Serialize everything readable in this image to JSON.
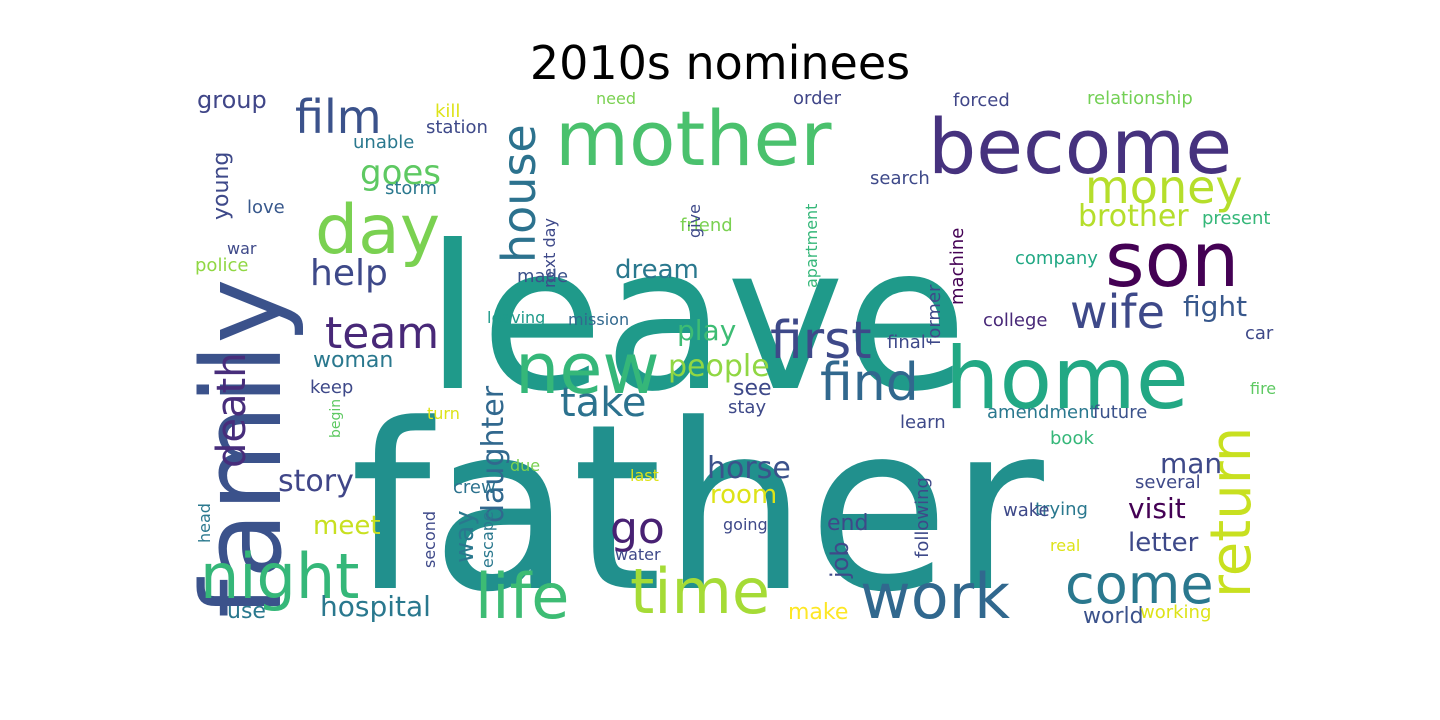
{
  "chart_data": {
    "type": "wordcloud",
    "title": "2010s nominees",
    "words": [
      {
        "text": "father",
        "weight": 1.0,
        "color": "#21908d",
        "rotated": false
      },
      {
        "text": "leave",
        "weight": 0.96,
        "color": "#1f9a8a",
        "rotated": false
      },
      {
        "text": "family",
        "weight": 0.62,
        "color": "#3b528b",
        "rotated": true
      },
      {
        "text": "mother",
        "weight": 0.5,
        "color": "#4ac16d",
        "rotated": false
      },
      {
        "text": "become",
        "weight": 0.5,
        "color": "#46327e",
        "rotated": false
      },
      {
        "text": "home",
        "weight": 0.5,
        "color": "#22a884",
        "rotated": false
      },
      {
        "text": "son",
        "weight": 0.44,
        "color": "#440154",
        "rotated": false
      },
      {
        "text": "new",
        "weight": 0.42,
        "color": "#35b779",
        "rotated": false
      },
      {
        "text": "day",
        "weight": 0.4,
        "color": "#7ad151",
        "rotated": false
      },
      {
        "text": "life",
        "weight": 0.36,
        "color": "#3dbc74",
        "rotated": false
      },
      {
        "text": "night",
        "weight": 0.34,
        "color": "#35b779",
        "rotated": false
      },
      {
        "text": "time",
        "weight": 0.34,
        "color": "#a5db36",
        "rotated": false
      },
      {
        "text": "work",
        "weight": 0.34,
        "color": "#31688e",
        "rotated": false
      },
      {
        "text": "come",
        "weight": 0.3,
        "color": "#2a788e",
        "rotated": false
      },
      {
        "text": "return",
        "weight": 0.3,
        "color": "#c8e020",
        "rotated": true
      },
      {
        "text": "find",
        "weight": 0.28,
        "color": "#31688e",
        "rotated": false
      },
      {
        "text": "first",
        "weight": 0.28,
        "color": "#3e4989",
        "rotated": false
      },
      {
        "text": "house",
        "weight": 0.26,
        "color": "#2c728e",
        "rotated": true
      },
      {
        "text": "money",
        "weight": 0.26,
        "color": "#b5de2b",
        "rotated": false
      },
      {
        "text": "film",
        "weight": 0.26,
        "color": "#3b528b",
        "rotated": false
      },
      {
        "text": "wife",
        "weight": 0.26,
        "color": "#3e4989",
        "rotated": false
      },
      {
        "text": "team",
        "weight": 0.24,
        "color": "#482878",
        "rotated": false
      },
      {
        "text": "death",
        "weight": 0.22,
        "color": "#472d7b",
        "rotated": true
      },
      {
        "text": "go",
        "weight": 0.22,
        "color": "#482173",
        "rotated": false
      },
      {
        "text": "take",
        "weight": 0.22,
        "color": "#2c728e",
        "rotated": false
      },
      {
        "text": "help",
        "weight": 0.2,
        "color": "#3e4989",
        "rotated": false
      },
      {
        "text": "goes",
        "weight": 0.18,
        "color": "#5ec962",
        "rotated": false
      },
      {
        "text": "people",
        "weight": 0.16,
        "color": "#90d743",
        "rotated": false
      },
      {
        "text": "daughter",
        "weight": 0.15,
        "color": "#31688e",
        "rotated": true
      },
      {
        "text": "hospital",
        "weight": 0.15,
        "color": "#2a788e",
        "rotated": false
      },
      {
        "text": "story",
        "weight": 0.15,
        "color": "#404688",
        "rotated": false
      },
      {
        "text": "horse",
        "weight": 0.15,
        "color": "#3b528b",
        "rotated": false
      },
      {
        "text": "brother",
        "weight": 0.14,
        "color": "#b5de2b",
        "rotated": false
      },
      {
        "text": "man",
        "weight": 0.14,
        "color": "#3e4989",
        "rotated": false
      },
      {
        "text": "play",
        "weight": 0.14,
        "color": "#3dbc74",
        "rotated": false
      },
      {
        "text": "visit",
        "weight": 0.14,
        "color": "#440154",
        "rotated": false
      },
      {
        "text": "fight",
        "weight": 0.14,
        "color": "#38588c",
        "rotated": false
      },
      {
        "text": "letter",
        "weight": 0.13,
        "color": "#3e4989",
        "rotated": false
      },
      {
        "text": "meet",
        "weight": 0.13,
        "color": "#c8e020",
        "rotated": false
      },
      {
        "text": "room",
        "weight": 0.13,
        "color": "#dde318",
        "rotated": false
      },
      {
        "text": "dream",
        "weight": 0.13,
        "color": "#2a788e",
        "rotated": false
      },
      {
        "text": "way",
        "weight": 0.13,
        "color": "#2a788e",
        "rotated": true
      },
      {
        "text": "woman",
        "weight": 0.12,
        "color": "#2a788e",
        "rotated": false
      },
      {
        "text": "world",
        "weight": 0.12,
        "color": "#3b528b",
        "rotated": false
      },
      {
        "text": "job",
        "weight": 0.12,
        "color": "#3e4989",
        "rotated": true
      },
      {
        "text": "group",
        "weight": 0.12,
        "color": "#404688",
        "rotated": false
      },
      {
        "text": "young",
        "weight": 0.12,
        "color": "#3e4989",
        "rotated": true
      },
      {
        "text": "end",
        "weight": 0.11,
        "color": "#3e4989",
        "rotated": false
      },
      {
        "text": "see",
        "weight": 0.11,
        "color": "#3e4989",
        "rotated": false
      },
      {
        "text": "make",
        "weight": 0.11,
        "color": "#fde725",
        "rotated": false
      },
      {
        "text": "use",
        "weight": 0.11,
        "color": "#2a788e",
        "rotated": false
      },
      {
        "text": "crew",
        "weight": 0.1,
        "color": "#2c728e",
        "rotated": false
      },
      {
        "text": "escape",
        "weight": 0.1,
        "color": "#2a788e",
        "rotated": true
      },
      {
        "text": "stay",
        "weight": 0.1,
        "color": "#3e4989",
        "rotated": false
      },
      {
        "text": "learn",
        "weight": 0.1,
        "color": "#3e4989",
        "rotated": false
      },
      {
        "text": "keep",
        "weight": 0.1,
        "color": "#3e4989",
        "rotated": false
      },
      {
        "text": "love",
        "weight": 0.1,
        "color": "#38588c",
        "rotated": false
      },
      {
        "text": "storm",
        "weight": 0.1,
        "color": "#2a788e",
        "rotated": false
      },
      {
        "text": "relationship",
        "weight": 0.1,
        "color": "#73d055",
        "rotated": false
      },
      {
        "text": "forced",
        "weight": 0.1,
        "color": "#404688",
        "rotated": false
      },
      {
        "text": "order",
        "weight": 0.09,
        "color": "#404688",
        "rotated": false
      },
      {
        "text": "search",
        "weight": 0.09,
        "color": "#3e4989",
        "rotated": false
      },
      {
        "text": "station",
        "weight": 0.09,
        "color": "#3e4989",
        "rotated": false
      },
      {
        "text": "unable",
        "weight": 0.09,
        "color": "#2a788e",
        "rotated": false
      },
      {
        "text": "kill",
        "weight": 0.09,
        "color": "#dde318",
        "rotated": false
      },
      {
        "text": "need",
        "weight": 0.09,
        "color": "#7ad151",
        "rotated": false
      },
      {
        "text": "friend",
        "weight": 0.09,
        "color": "#7ad151",
        "rotated": false
      },
      {
        "text": "give",
        "weight": 0.08,
        "color": "#3e4989",
        "rotated": true
      },
      {
        "text": "next day",
        "weight": 0.08,
        "color": "#3e4989",
        "rotated": true
      },
      {
        "text": "made",
        "weight": 0.08,
        "color": "#3b528b",
        "rotated": false
      },
      {
        "text": "apartment",
        "weight": 0.09,
        "color": "#35b779",
        "rotated": true
      },
      {
        "text": "machine",
        "weight": 0.09,
        "color": "#440154",
        "rotated": true
      },
      {
        "text": "former",
        "weight": 0.09,
        "color": "#3e4989",
        "rotated": true
      },
      {
        "text": "final",
        "weight": 0.09,
        "color": "#3e4989",
        "rotated": false
      },
      {
        "text": "company",
        "weight": 0.09,
        "color": "#22a884",
        "rotated": false
      },
      {
        "text": "present",
        "weight": 0.09,
        "color": "#35b779",
        "rotated": false
      },
      {
        "text": "leaving",
        "weight": 0.09,
        "color": "#1f9a8a",
        "rotated": false
      },
      {
        "text": "mission",
        "weight": 0.09,
        "color": "#31688e",
        "rotated": false
      },
      {
        "text": "college",
        "weight": 0.09,
        "color": "#482878",
        "rotated": false
      },
      {
        "text": "car",
        "weight": 0.09,
        "color": "#3e4989",
        "rotated": false
      },
      {
        "text": "war",
        "weight": 0.09,
        "color": "#3e4989",
        "rotated": false
      },
      {
        "text": "police",
        "weight": 0.09,
        "color": "#90d743",
        "rotated": false
      },
      {
        "text": "turn",
        "weight": 0.09,
        "color": "#dde318",
        "rotated": false
      },
      {
        "text": "begin",
        "weight": 0.08,
        "color": "#5ec962",
        "rotated": true
      },
      {
        "text": "amendment",
        "weight": 0.09,
        "color": "#2a788e",
        "rotated": false
      },
      {
        "text": "future",
        "weight": 0.09,
        "color": "#3b528b",
        "rotated": false
      },
      {
        "text": "fire",
        "weight": 0.09,
        "color": "#5ec962",
        "rotated": false
      },
      {
        "text": "book",
        "weight": 0.09,
        "color": "#35b779",
        "rotated": false
      },
      {
        "text": "due",
        "weight": 0.08,
        "color": "#7ad151",
        "rotated": false
      },
      {
        "text": "last",
        "weight": 0.08,
        "color": "#dde318",
        "rotated": false
      },
      {
        "text": "several",
        "weight": 0.09,
        "color": "#3e4989",
        "rotated": false
      },
      {
        "text": "trying",
        "weight": 0.09,
        "color": "#2a788e",
        "rotated": false
      },
      {
        "text": "wake",
        "weight": 0.09,
        "color": "#3e4989",
        "rotated": false
      },
      {
        "text": "following",
        "weight": 0.09,
        "color": "#3e4989",
        "rotated": true
      },
      {
        "text": "going",
        "weight": 0.08,
        "color": "#3e4989",
        "rotated": false
      },
      {
        "text": "real",
        "weight": 0.08,
        "color": "#dde318",
        "rotated": false
      },
      {
        "text": "water",
        "weight": 0.08,
        "color": "#3e4989",
        "rotated": false
      },
      {
        "text": "second",
        "weight": 0.08,
        "color": "#3e4989",
        "rotated": true
      },
      {
        "text": "head",
        "weight": 0.08,
        "color": "#2a788e",
        "rotated": true
      },
      {
        "text": "working",
        "weight": 0.09,
        "color": "#dde318",
        "rotated": false
      }
    ]
  }
}
